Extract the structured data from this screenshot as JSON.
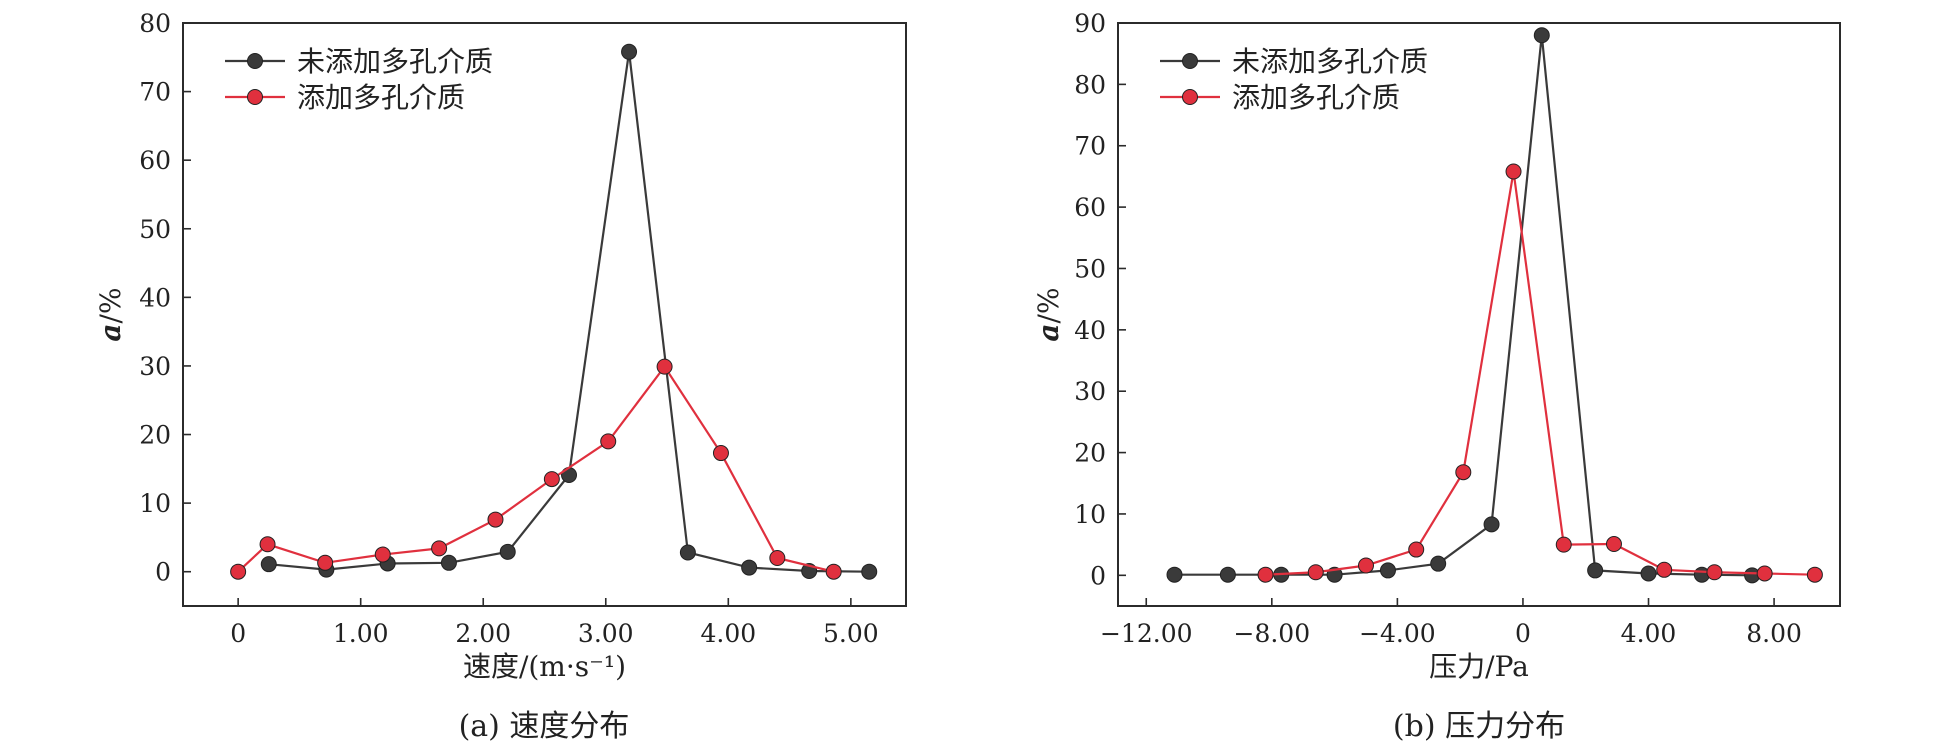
{
  "chart_data": [
    {
      "type": "line",
      "caption": "(a) 速度分布",
      "xlabel": "速度/(m·s⁻¹)",
      "ylabel": "a/%",
      "xlim": [
        -0.45,
        5.45
      ],
      "ylim": [
        -5,
        80
      ],
      "xticks": [
        0,
        1,
        2,
        3,
        4,
        5
      ],
      "xtick_labels": [
        "0",
        "1.00",
        "2.00",
        "3.00",
        "4.00",
        "5.00"
      ],
      "yticks": [
        0,
        10,
        20,
        30,
        40,
        50,
        60,
        70,
        80
      ],
      "ytick_labels": [
        "0",
        "10",
        "20",
        "30",
        "40",
        "50",
        "60",
        "70",
        "80"
      ],
      "legend_position": "top-left",
      "series": [
        {
          "name": "未添加多孔介质",
          "color": "#3a3a3a",
          "x": [
            0.25,
            0.72,
            1.22,
            1.72,
            2.2,
            2.7,
            3.19,
            3.67,
            4.17,
            4.66,
            5.15
          ],
          "y": [
            1.1,
            0.3,
            1.2,
            1.3,
            2.9,
            14.1,
            75.8,
            2.8,
            0.6,
            0.1,
            0.0
          ]
        },
        {
          "name": "添加多孔介质",
          "color": "#e0303e",
          "x": [
            0.0,
            0.24,
            0.71,
            1.18,
            1.64,
            2.1,
            2.56,
            3.02,
            3.48,
            3.94,
            4.4,
            4.86
          ],
          "y": [
            0.0,
            4.0,
            1.3,
            2.5,
            3.4,
            7.6,
            13.5,
            19.0,
            29.9,
            17.3,
            2.0,
            0.0
          ]
        }
      ]
    },
    {
      "type": "line",
      "caption": "(b) 压力分布",
      "xlabel": "压力/Pa",
      "ylabel": "a/%",
      "xlim": [
        -12.9,
        10.1
      ],
      "ylim": [
        -5,
        90
      ],
      "xticks": [
        -12,
        -8,
        -4,
        0,
        4,
        8
      ],
      "xtick_labels": [
        "−12.00",
        "−8.00",
        "−4.00",
        "0",
        "4.00",
        "8.00"
      ],
      "yticks": [
        0,
        10,
        20,
        30,
        40,
        50,
        60,
        70,
        80,
        90
      ],
      "ytick_labels": [
        "0",
        "10",
        "20",
        "30",
        "40",
        "50",
        "60",
        "70",
        "80",
        "90"
      ],
      "legend_position": "top-left",
      "series": [
        {
          "name": "未添加多孔介质",
          "color": "#3a3a3a",
          "x": [
            -11.1,
            -9.4,
            -7.7,
            -6.0,
            -4.3,
            -2.7,
            -1.0,
            0.6,
            2.3,
            4.0,
            5.7,
            7.3
          ],
          "y": [
            0.1,
            0.1,
            0.1,
            0.1,
            0.8,
            1.9,
            8.3,
            88.0,
            0.8,
            0.3,
            0.1,
            0.0
          ]
        },
        {
          "name": "添加多孔介质",
          "color": "#e0303e",
          "x": [
            -8.2,
            -6.6,
            -5.0,
            -3.4,
            -1.9,
            -0.3,
            1.3,
            2.9,
            4.5,
            6.1,
            7.7,
            9.3
          ],
          "y": [
            0.1,
            0.5,
            1.6,
            4.2,
            16.8,
            65.8,
            5.0,
            5.1,
            0.9,
            0.5,
            0.3,
            0.1
          ]
        }
      ]
    }
  ]
}
